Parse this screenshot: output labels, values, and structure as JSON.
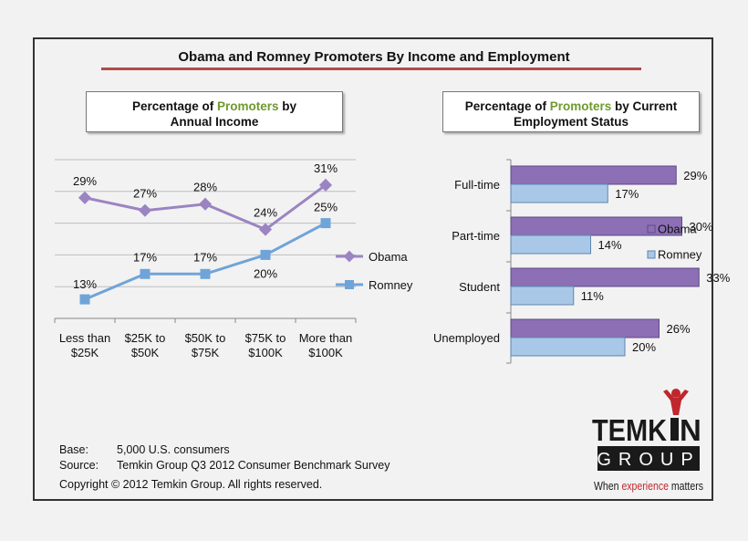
{
  "title": "Obama and Romney Promoters By Income and Employment",
  "colors": {
    "obama": "#9b84c2",
    "obama_bar": "#8c6fb5",
    "romney": "#6fa4d8",
    "romney_bar": "#a9c8e8",
    "rule": "#b34a4a",
    "brand_red": "#c0262d"
  },
  "chart_data": [
    {
      "type": "line",
      "title_parts": [
        "Percentage of ",
        "Promoters",
        " by",
        "Annual Income"
      ],
      "categories": [
        [
          "Less than",
          "$25K"
        ],
        [
          "$25K to",
          "$50K"
        ],
        [
          "$50K to",
          "$75K"
        ],
        [
          "$75K to",
          "$100K"
        ],
        [
          "More than",
          "$100K"
        ]
      ],
      "series": [
        {
          "name": "Obama",
          "values": [
            29,
            27,
            28,
            24,
            31
          ],
          "labels": [
            "29%",
            "27%",
            "28%",
            "24%",
            "31%"
          ]
        },
        {
          "name": "Romney",
          "values": [
            13,
            17,
            17,
            20,
            25
          ],
          "labels": [
            "13%",
            "17%",
            "17%",
            "20%",
            "25%"
          ]
        }
      ],
      "grid": true,
      "legend": "right"
    },
    {
      "type": "bar",
      "orientation": "horizontal",
      "title_parts": [
        "Percentage of ",
        "Promoters",
        " by Current",
        "Employment Status"
      ],
      "categories": [
        "Full-time",
        "Part-time",
        "Student",
        "Unemployed"
      ],
      "series": [
        {
          "name": "Obama",
          "values": [
            29,
            30,
            33,
            26
          ],
          "labels": [
            "29%",
            "30%",
            "33%",
            "26%"
          ]
        },
        {
          "name": "Romney",
          "values": [
            17,
            14,
            11,
            20
          ],
          "labels": [
            "17%",
            "14%",
            "11%",
            "20%"
          ]
        }
      ],
      "legend": "right"
    }
  ],
  "footer": {
    "base_label": "Base:",
    "base_value": "5,000 U.S. consumers",
    "source_label": "Source:",
    "source_value": "Temkin Group Q3 2012 Consumer Benchmark Survey",
    "copyright": "Copyright © 2012 Temkin Group. All rights reserved."
  },
  "logo": {
    "word1_a": "TEMK",
    "word1_b": "N",
    "word2": "GROUP",
    "tagline_a": "When ",
    "tagline_b": "experience",
    "tagline_c": " matters"
  }
}
